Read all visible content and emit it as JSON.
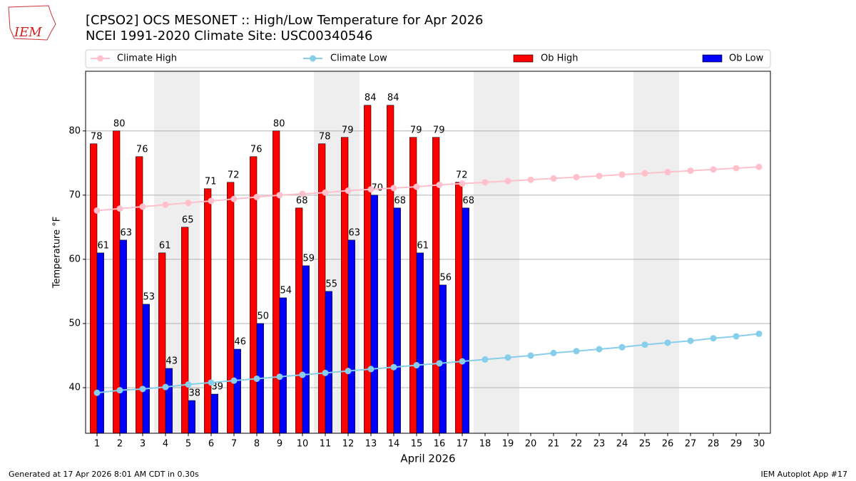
{
  "logo_text": "IEM",
  "footer_left": "Generated at 17 Apr 2026 8:01 AM CDT in 0.30s",
  "footer_right": "IEM Autoplot App #17",
  "chart_data": {
    "type": "bar_line",
    "title": "[CPSO2] OCS MESONET :: High/Low Temperature for Apr 2026",
    "subtitle": "NCEI 1991-2020 Climate Site: USC00340546",
    "x_label": "April 2026",
    "y_label": "Temperature °F",
    "x": [
      1,
      2,
      3,
      4,
      5,
      6,
      7,
      8,
      9,
      10,
      11,
      12,
      13,
      14,
      15,
      16,
      17,
      18,
      19,
      20,
      21,
      22,
      23,
      24,
      25,
      26,
      27,
      28,
      29,
      30
    ],
    "weekend_days": [
      4,
      5,
      11,
      12,
      18,
      19,
      25,
      26
    ],
    "series": [
      {
        "name": "Climate High",
        "type": "line",
        "color": "#ffc0cb",
        "values": [
          67.6,
          67.9,
          68.2,
          68.5,
          68.8,
          69.1,
          69.4,
          69.7,
          70.0,
          70.2,
          70.4,
          70.7,
          70.9,
          71.1,
          71.3,
          71.6,
          71.8,
          72.0,
          72.2,
          72.4,
          72.6,
          72.8,
          73.0,
          73.2,
          73.4,
          73.6,
          73.8,
          74.0,
          74.2,
          74.4
        ]
      },
      {
        "name": "Climate Low",
        "type": "line",
        "color": "#87ceeb",
        "values": [
          39.2,
          39.6,
          39.8,
          40.1,
          40.5,
          40.8,
          41.1,
          41.4,
          41.7,
          42.0,
          42.3,
          42.6,
          42.9,
          43.2,
          43.5,
          43.8,
          44.1,
          44.4,
          44.7,
          45.0,
          45.4,
          45.7,
          46.0,
          46.3,
          46.7,
          47.0,
          47.3,
          47.7,
          48.0,
          48.4
        ]
      },
      {
        "name": "Ob High",
        "type": "bar",
        "color": "#ff0000",
        "values": [
          78,
          80,
          76,
          61,
          65,
          71,
          72,
          76,
          80,
          68,
          78,
          79,
          84,
          84,
          79,
          79,
          72,
          null,
          null,
          null,
          null,
          null,
          null,
          null,
          null,
          null,
          null,
          null,
          null,
          null
        ]
      },
      {
        "name": "Ob Low",
        "type": "bar",
        "color": "#0000ff",
        "values": [
          61,
          63,
          53,
          43,
          38,
          39,
          46,
          50,
          54,
          59,
          55,
          63,
          70,
          68,
          61,
          56,
          68,
          null,
          null,
          null,
          null,
          null,
          null,
          null,
          null,
          null,
          null,
          null,
          null,
          null
        ]
      }
    ],
    "xlim": [
      0.5,
      30.5
    ],
    "xticks": [
      1,
      2,
      3,
      4,
      5,
      6,
      7,
      8,
      9,
      10,
      11,
      12,
      13,
      14,
      15,
      16,
      17,
      18,
      19,
      20,
      21,
      22,
      23,
      24,
      25,
      26,
      27,
      28,
      29,
      30
    ],
    "ylim": [
      32.9,
      89.3
    ],
    "yticks": [
      40,
      50,
      60,
      70,
      80
    ],
    "grid": true,
    "legend": "top"
  }
}
